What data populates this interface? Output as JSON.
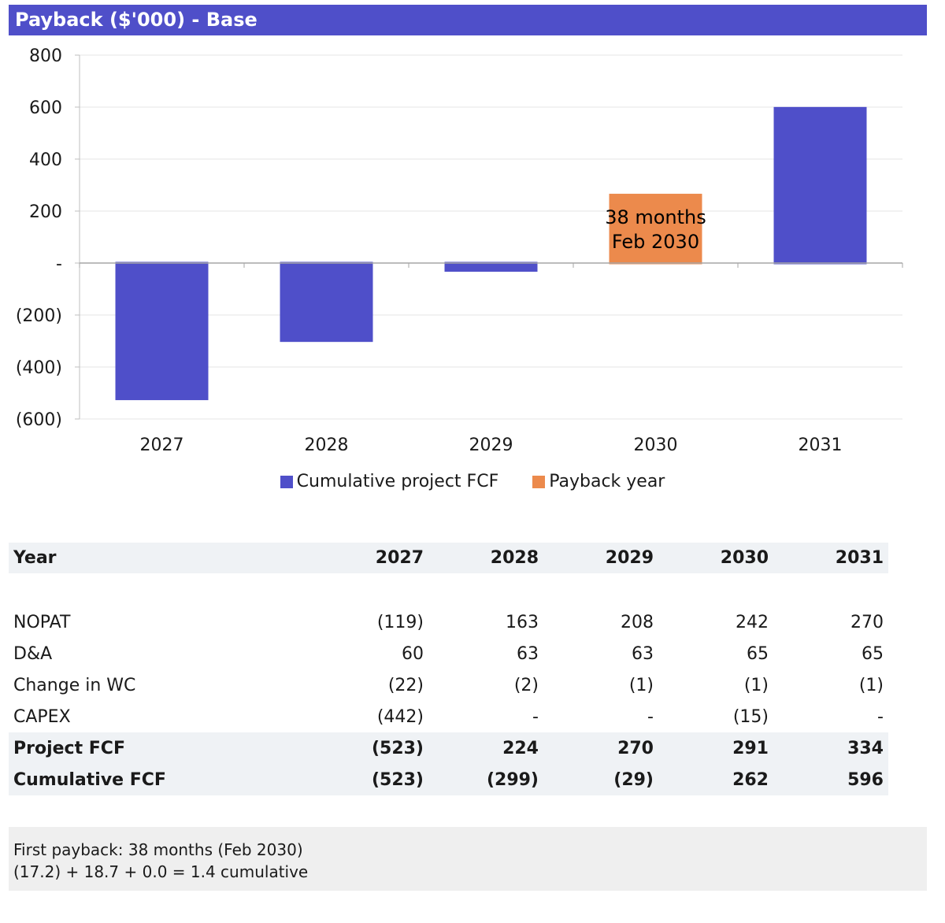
{
  "title": "Payback ($'000) - Base",
  "chart_data": {
    "type": "bar",
    "categories": [
      "2027",
      "2028",
      "2029",
      "2030",
      "2031"
    ],
    "series": [
      {
        "name": "Cumulative project FCF",
        "values": [
          -523,
          -299,
          -29,
          0,
          596
        ],
        "color": "#4f4fc9"
      },
      {
        "name": "Payback year",
        "values": [
          0,
          0,
          0,
          262,
          0
        ],
        "color": "#ec8a4c"
      }
    ],
    "ylim": [
      -600,
      800
    ],
    "yticks": [
      800,
      600,
      400,
      200,
      0,
      -200,
      -400,
      -600
    ],
    "ytick_labels": [
      "800",
      "600",
      "400",
      "200",
      "-",
      "(200)",
      "(400)",
      "(600)"
    ],
    "annotation": {
      "category": "2030",
      "lines": [
        "38 months",
        "Feb 2030"
      ]
    },
    "grid": true,
    "legend_position": "bottom"
  },
  "table": {
    "header": {
      "label": "Year",
      "values": [
        "2027",
        "2028",
        "2029",
        "2030",
        "2031"
      ]
    },
    "rows": [
      {
        "label": "NOPAT",
        "values": [
          "(119)",
          "163",
          "208",
          "242",
          "270"
        ],
        "bold": false
      },
      {
        "label": "D&A",
        "values": [
          "60",
          "63",
          "63",
          "65",
          "65"
        ],
        "bold": false
      },
      {
        "label": "Change in WC",
        "values": [
          "(22)",
          "(2)",
          "(1)",
          "(1)",
          "(1)"
        ],
        "bold": false
      },
      {
        "label": "CAPEX",
        "values": [
          "(442)",
          "-",
          "-",
          "(15)",
          "-"
        ],
        "bold": false
      },
      {
        "label": "Project FCF",
        "values": [
          "(523)",
          "224",
          "270",
          "291",
          "334"
        ],
        "bold": true
      },
      {
        "label": "Cumulative FCF",
        "values": [
          "(523)",
          "(299)",
          "(29)",
          "262",
          "596"
        ],
        "bold": true
      }
    ]
  },
  "note": {
    "line1": "First payback: 38 months (Feb 2030)",
    "line2": "(17.2) + 18.7 + 0.0 = 1.4 cumulative"
  }
}
